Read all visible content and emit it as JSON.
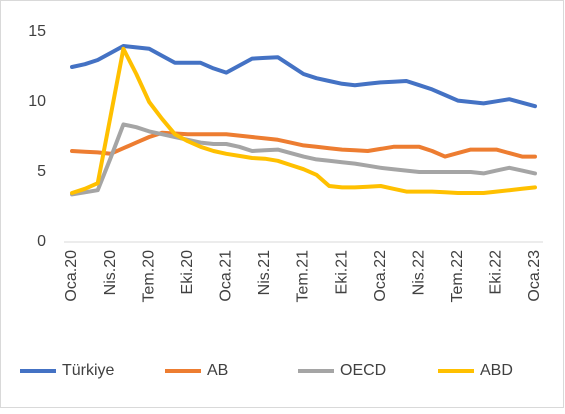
{
  "chart_data": {
    "type": "line",
    "categories": [
      "Oca.20",
      null,
      null,
      "Nis.20",
      null,
      null,
      "Tem.20",
      null,
      null,
      "Eki.20",
      null,
      null,
      "Oca.21",
      null,
      null,
      "Nis.21",
      null,
      null,
      "Tem.21",
      null,
      null,
      "Eki.21",
      null,
      null,
      "Oca.22",
      null,
      null,
      "Nis.22",
      null,
      null,
      "Tem.22",
      null,
      null,
      "Eki.22",
      null,
      null,
      "Oca.23"
    ],
    "series": [
      {
        "name": "Türkiye",
        "color": "#4472c4",
        "values": [
          12.5,
          12.7,
          13.0,
          13.5,
          14.0,
          13.9,
          13.8,
          13.3,
          12.8,
          12.8,
          12.8,
          12.4,
          12.1,
          12.6,
          13.1,
          13.15,
          13.2,
          12.6,
          12.0,
          11.7,
          11.5,
          11.3,
          11.2,
          11.3,
          11.4,
          11.45,
          11.5,
          11.2,
          10.9,
          10.5,
          10.1,
          10.0,
          9.9,
          10.05,
          10.2,
          9.95,
          9.7
        ]
      },
      {
        "name": "AB",
        "color": "#ed7d31",
        "values": [
          6.5,
          6.45,
          6.4,
          6.3,
          6.7,
          7.1,
          7.5,
          7.8,
          7.75,
          7.7,
          7.7,
          7.7,
          7.7,
          7.6,
          7.5,
          7.4,
          7.3,
          7.1,
          6.9,
          6.8,
          6.7,
          6.6,
          6.55,
          6.5,
          6.65,
          6.8,
          6.8,
          6.8,
          6.5,
          6.1,
          6.35,
          6.6,
          6.6,
          6.6,
          6.35,
          6.1,
          6.1
        ]
      },
      {
        "name": "OECD",
        "color": "#a5a5a5",
        "values": [
          3.4,
          3.55,
          3.7,
          6.0,
          8.4,
          8.2,
          7.9,
          7.7,
          7.5,
          7.3,
          7.1,
          7.0,
          7.0,
          6.8,
          6.5,
          6.55,
          6.6,
          6.35,
          6.1,
          5.9,
          5.8,
          5.7,
          5.6,
          5.45,
          5.3,
          5.2,
          5.1,
          5.0,
          5.0,
          5.0,
          5.0,
          5.0,
          4.9,
          5.1,
          5.3,
          5.1,
          4.9
        ]
      },
      {
        "name": "ABD",
        "color": "#ffc000",
        "values": [
          3.5,
          3.8,
          4.2,
          9.0,
          13.8,
          12.0,
          10.0,
          8.8,
          7.7,
          7.2,
          6.8,
          6.5,
          6.3,
          6.15,
          6.0,
          5.95,
          5.8,
          5.5,
          5.2,
          4.8,
          4.0,
          3.9,
          3.9,
          3.95,
          4.0,
          3.8,
          3.6,
          3.6,
          3.6,
          3.55,
          3.5,
          3.5,
          3.5,
          3.6,
          3.7,
          3.8,
          3.9
        ]
      }
    ],
    "ylim": [
      0,
      15
    ],
    "yticks": [
      0,
      5,
      10,
      15
    ],
    "legend": "bottom"
  }
}
